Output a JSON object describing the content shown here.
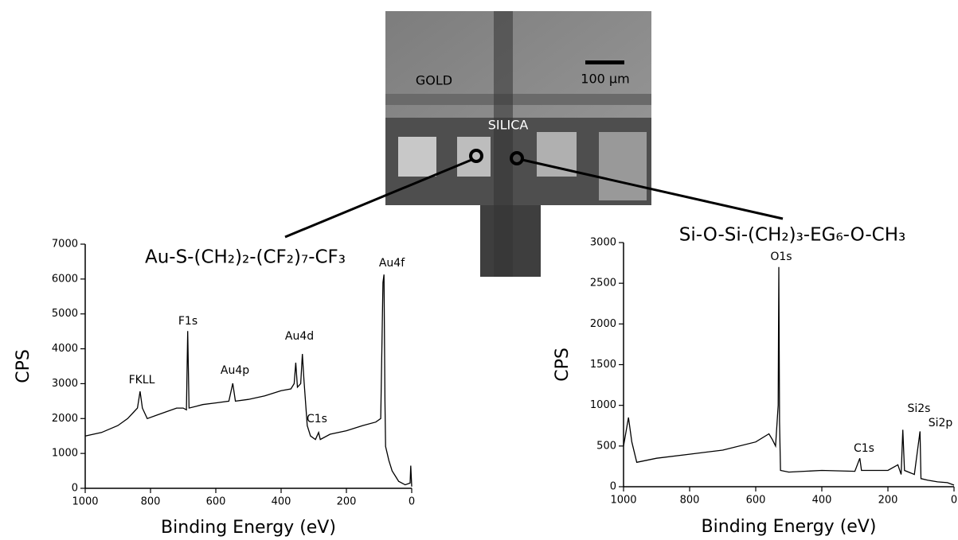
{
  "image": {
    "labels": [
      "GOLD",
      "SILICA"
    ],
    "scale_bar": "100 µm"
  },
  "chart_data": [
    {
      "type": "line",
      "title": "Au-S-(CH₂)₂-(CF₂)₇-CF₃",
      "x_label": "Binding Energy (eV)",
      "y_label": "CPS",
      "color": "#000000",
      "annotations": [
        "FKLL",
        "F1s",
        "Au4p",
        "Au4d",
        "C1s",
        "Au4f"
      ],
      "x": [
        1000,
        950,
        900,
        870,
        850,
        840,
        832,
        825,
        810,
        780,
        750,
        720,
        700,
        690,
        686,
        682,
        660,
        640,
        600,
        560,
        548,
        540,
        500,
        450,
        400,
        370,
        360,
        355,
        350,
        340,
        335,
        330,
        320,
        310,
        295,
        285,
        280,
        250,
        200,
        150,
        110,
        95,
        88,
        85,
        82,
        80,
        70,
        60,
        50,
        40,
        20,
        5,
        3,
        0
      ],
      "values": [
        1500,
        1600,
        1800,
        2000,
        2200,
        2300,
        2780,
        2300,
        2000,
        2100,
        2200,
        2300,
        2300,
        2250,
        4510,
        2300,
        2350,
        2400,
        2450,
        2500,
        3010,
        2500,
        2550,
        2650,
        2800,
        2850,
        3000,
        3600,
        2900,
        3000,
        3850,
        3100,
        1800,
        1500,
        1400,
        1600,
        1400,
        1550,
        1650,
        1800,
        1900,
        2000,
        5900,
        6130,
        2500,
        1200,
        800,
        500,
        350,
        200,
        100,
        150,
        650,
        50
      ],
      "xlim": [
        1000,
        0
      ],
      "ylim": [
        0,
        7000
      ],
      "xticks": [
        1000,
        800,
        600,
        400,
        200,
        0
      ],
      "yticks": [
        0,
        1000,
        2000,
        3000,
        4000,
        5000,
        6000,
        7000
      ]
    },
    {
      "type": "line",
      "title": "Si-O-Si-(CH₂)₃-EG₆-O-CH₃",
      "x_label": "Binding Energy (eV)",
      "y_label": "CPS",
      "color": "#000000",
      "annotations": [
        "O1s",
        "C1s",
        "Si2s",
        "Si2p"
      ],
      "x": [
        1000,
        985,
        975,
        960,
        900,
        800,
        700,
        600,
        560,
        550,
        540,
        532,
        530,
        528,
        525,
        500,
        400,
        300,
        285,
        280,
        200,
        170,
        160,
        155,
        150,
        120,
        103,
        100,
        80,
        50,
        20,
        0
      ],
      "values": [
        500,
        850,
        550,
        300,
        350,
        400,
        450,
        550,
        650,
        580,
        500,
        1000,
        2700,
        800,
        200,
        180,
        200,
        190,
        350,
        200,
        200,
        270,
        150,
        700,
        200,
        150,
        680,
        100,
        80,
        60,
        50,
        20
      ],
      "xlim": [
        1000,
        0
      ],
      "ylim": [
        0,
        3000
      ],
      "xticks": [
        1000,
        800,
        600,
        400,
        200,
        0
      ],
      "yticks": [
        0,
        500,
        1000,
        1500,
        2000,
        2500,
        3000
      ]
    }
  ]
}
